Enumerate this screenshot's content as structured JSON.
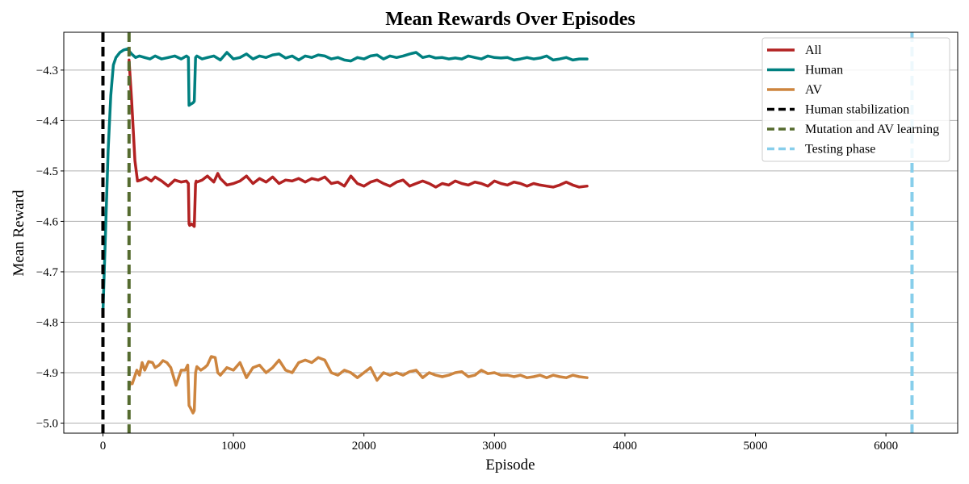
{
  "chart_data": {
    "type": "line",
    "title": "Mean Rewards Over Episodes",
    "xlabel": "Episode",
    "ylabel": "Mean Reward",
    "xlim": [
      -300,
      6550
    ],
    "ylim": [
      -5.02,
      -4.225
    ],
    "xticks": [
      0,
      1000,
      2000,
      3000,
      4000,
      5000,
      6000
    ],
    "yticks": [
      -5.0,
      -4.9,
      -4.8,
      -4.7,
      -4.6,
      -4.5,
      -4.4,
      -4.3
    ],
    "xtick_labels": [
      "0",
      "1000",
      "2000",
      "3000",
      "4000",
      "5000",
      "6000"
    ],
    "ytick_labels": [
      "−5.0",
      "−4.9",
      "−4.8",
      "−4.7",
      "−4.6",
      "−4.5",
      "−4.4",
      "−4.3"
    ],
    "grid": "horizontal",
    "legend_position": "top-right",
    "series": [
      {
        "name": "All",
        "color": "#b22222",
        "x": [
          200,
          220,
          245,
          265,
          290,
          330,
          370,
          400,
          450,
          500,
          550,
          600,
          640,
          655,
          660,
          665,
          680,
          700,
          710,
          715,
          720,
          760,
          800,
          850,
          880,
          900,
          950,
          1000,
          1050,
          1100,
          1150,
          1200,
          1250,
          1300,
          1350,
          1400,
          1450,
          1500,
          1550,
          1600,
          1650,
          1700,
          1750,
          1800,
          1850,
          1900,
          1950,
          2000,
          2050,
          2100,
          2150,
          2200,
          2250,
          2300,
          2350,
          2400,
          2450,
          2500,
          2550,
          2600,
          2650,
          2700,
          2750,
          2800,
          2850,
          2900,
          2950,
          3000,
          3050,
          3100,
          3150,
          3200,
          3250,
          3300,
          3350,
          3400,
          3450,
          3500,
          3550,
          3600,
          3650,
          3710
        ],
        "values": [
          -4.28,
          -4.36,
          -4.48,
          -4.52,
          -4.518,
          -4.513,
          -4.52,
          -4.512,
          -4.52,
          -4.53,
          -4.518,
          -4.522,
          -4.52,
          -4.525,
          -4.605,
          -4.608,
          -4.605,
          -4.61,
          -4.525,
          -4.52,
          -4.522,
          -4.518,
          -4.51,
          -4.522,
          -4.505,
          -4.515,
          -4.528,
          -4.525,
          -4.52,
          -4.51,
          -4.525,
          -4.515,
          -4.522,
          -4.512,
          -4.525,
          -4.518,
          -4.52,
          -4.515,
          -4.522,
          -4.515,
          -4.518,
          -4.512,
          -4.525,
          -4.522,
          -4.53,
          -4.51,
          -4.525,
          -4.53,
          -4.522,
          -4.518,
          -4.525,
          -4.53,
          -4.522,
          -4.518,
          -4.53,
          -4.525,
          -4.52,
          -4.525,
          -4.532,
          -4.525,
          -4.528,
          -4.52,
          -4.525,
          -4.528,
          -4.522,
          -4.525,
          -4.53,
          -4.52,
          -4.525,
          -4.528,
          -4.522,
          -4.525,
          -4.53,
          -4.525,
          -4.528,
          -4.53,
          -4.532,
          -4.528,
          -4.522,
          -4.528,
          -4.532,
          -4.53
        ]
      },
      {
        "name": "Human",
        "color": "#008080",
        "x": [
          0,
          10,
          25,
          40,
          60,
          80,
          100,
          130,
          160,
          190,
          200,
          220,
          250,
          280,
          320,
          360,
          400,
          450,
          500,
          550,
          600,
          640,
          655,
          660,
          670,
          690,
          700,
          710,
          720,
          760,
          800,
          850,
          900,
          950,
          1000,
          1050,
          1100,
          1150,
          1200,
          1250,
          1300,
          1350,
          1400,
          1450,
          1500,
          1550,
          1600,
          1650,
          1700,
          1750,
          1800,
          1850,
          1900,
          1950,
          2000,
          2050,
          2100,
          2150,
          2200,
          2250,
          2300,
          2350,
          2400,
          2450,
          2500,
          2550,
          2600,
          2650,
          2700,
          2750,
          2800,
          2850,
          2900,
          2950,
          3000,
          3050,
          3100,
          3150,
          3200,
          3250,
          3300,
          3350,
          3400,
          3450,
          3500,
          3550,
          3600,
          3650,
          3710
        ],
        "values": [
          -4.78,
          -4.7,
          -4.58,
          -4.46,
          -4.35,
          -4.29,
          -4.275,
          -4.265,
          -4.26,
          -4.258,
          -4.262,
          -4.268,
          -4.275,
          -4.272,
          -4.275,
          -4.278,
          -4.272,
          -4.278,
          -4.275,
          -4.272,
          -4.278,
          -4.272,
          -4.275,
          -4.37,
          -4.368,
          -4.365,
          -4.362,
          -4.275,
          -4.272,
          -4.278,
          -4.275,
          -4.272,
          -4.28,
          -4.265,
          -4.278,
          -4.275,
          -4.268,
          -4.278,
          -4.272,
          -4.275,
          -4.27,
          -4.268,
          -4.276,
          -4.272,
          -4.28,
          -4.272,
          -4.275,
          -4.27,
          -4.272,
          -4.278,
          -4.275,
          -4.28,
          -4.282,
          -4.275,
          -4.278,
          -4.272,
          -4.27,
          -4.278,
          -4.272,
          -4.275,
          -4.272,
          -4.268,
          -4.265,
          -4.275,
          -4.272,
          -4.276,
          -4.275,
          -4.278,
          -4.276,
          -4.278,
          -4.272,
          -4.275,
          -4.278,
          -4.272,
          -4.275,
          -4.276,
          -4.275,
          -4.28,
          -4.278,
          -4.275,
          -4.278,
          -4.276,
          -4.272,
          -4.28,
          -4.278,
          -4.275,
          -4.28,
          -4.278,
          -4.278
        ]
      },
      {
        "name": "AV",
        "color": "#cd853f",
        "x": [
          200,
          210,
          225,
          240,
          260,
          280,
          300,
          320,
          350,
          380,
          400,
          430,
          460,
          490,
          520,
          560,
          600,
          630,
          650,
          660,
          670,
          680,
          690,
          700,
          710,
          720,
          750,
          780,
          800,
          830,
          860,
          880,
          900,
          950,
          1000,
          1050,
          1100,
          1150,
          1200,
          1250,
          1300,
          1350,
          1400,
          1450,
          1500,
          1550,
          1600,
          1650,
          1700,
          1750,
          1800,
          1850,
          1900,
          1950,
          2000,
          2050,
          2100,
          2150,
          2200,
          2250,
          2300,
          2350,
          2400,
          2450,
          2500,
          2550,
          2600,
          2650,
          2700,
          2750,
          2800,
          2850,
          2900,
          2950,
          3000,
          3050,
          3100,
          3150,
          3200,
          3250,
          3300,
          3350,
          3400,
          3450,
          3500,
          3550,
          3600,
          3650,
          3710
        ],
        "values": [
          -4.93,
          -4.92,
          -4.922,
          -4.91,
          -4.895,
          -4.905,
          -4.88,
          -4.895,
          -4.878,
          -4.88,
          -4.89,
          -4.885,
          -4.876,
          -4.88,
          -4.89,
          -4.925,
          -4.895,
          -4.895,
          -4.885,
          -4.965,
          -4.97,
          -4.975,
          -4.98,
          -4.975,
          -4.9,
          -4.888,
          -4.895,
          -4.89,
          -4.885,
          -4.868,
          -4.87,
          -4.9,
          -4.905,
          -4.89,
          -4.895,
          -4.88,
          -4.91,
          -4.89,
          -4.885,
          -4.9,
          -4.89,
          -4.875,
          -4.895,
          -4.9,
          -4.88,
          -4.875,
          -4.88,
          -4.87,
          -4.875,
          -4.9,
          -4.905,
          -4.895,
          -4.9,
          -4.91,
          -4.9,
          -4.89,
          -4.915,
          -4.9,
          -4.905,
          -4.9,
          -4.905,
          -4.898,
          -4.895,
          -4.91,
          -4.9,
          -4.905,
          -4.908,
          -4.905,
          -4.9,
          -4.898,
          -4.908,
          -4.905,
          -4.895,
          -4.902,
          -4.9,
          -4.905,
          -4.905,
          -4.908,
          -4.905,
          -4.91,
          -4.908,
          -4.905,
          -4.91,
          -4.905,
          -4.908,
          -4.91,
          -4.905,
          -4.908,
          -4.91
        ]
      }
    ],
    "vlines": [
      {
        "name": "Human stabilization",
        "x": 0,
        "color": "#000000",
        "style": "dashed"
      },
      {
        "name": "Mutation and AV learning",
        "x": 200,
        "color": "#556b2f",
        "style": "dashed"
      },
      {
        "name": "Testing phase",
        "x": 6200,
        "color": "#87ceeb",
        "style": "dashed"
      }
    ]
  }
}
